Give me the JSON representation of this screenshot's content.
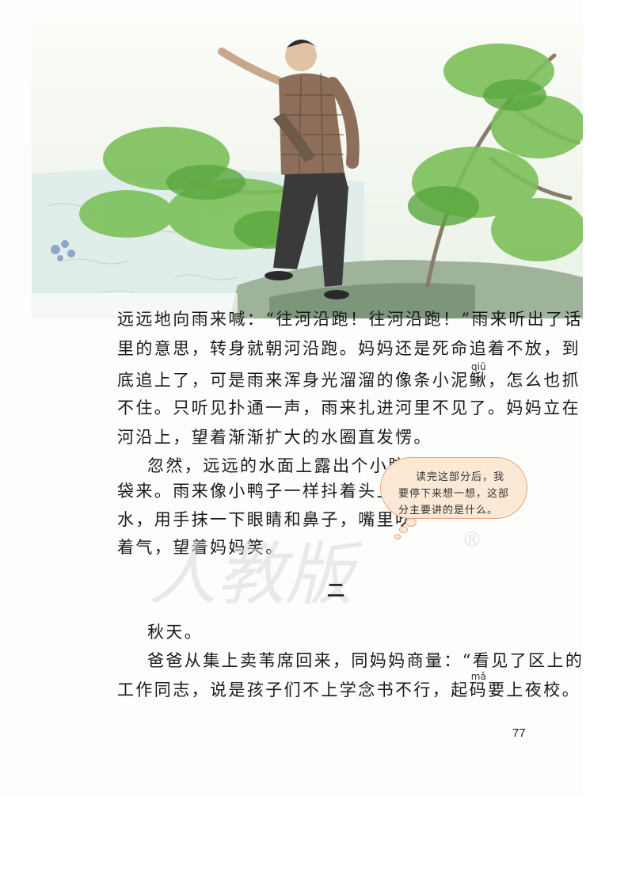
{
  "body_lines": [
    "远远地向雨来喊：“往河沿跑！往河沿跑！”雨来听出了话",
    "里的意思，转身就朝河沿跑。妈妈还是死命追着不放，到",
    "不住。只听见扑通一声，雨来扎进河里不见了。妈妈立在",
    "河沿上，望着渐渐扩大的水圈直发愣。"
  ],
  "line3": {
    "before": "底追上了，可是雨来浑身光溜溜的像条小泥",
    "ruby_char": "鳅",
    "pinyin": "qiū",
    "after": "，怎么也抓"
  },
  "para2_lines": [
    "忽然，远远的水面上露出个小脑",
    "袋来。雨来像小鸭子一样抖着头上的",
    "水，用手抹一下眼睛和鼻子，嘴里吹",
    "着气，望着妈妈笑。"
  ],
  "bubble_lines": [
    "读完这部分后，我",
    "要停下来想一想，这部",
    "分主要讲的是什么。"
  ],
  "watermark": "人教版",
  "registered_mark": "®",
  "section_number": "二",
  "para3": "秋天。",
  "para4_line1": {
    "before": "爸爸从集上卖苇席回来，同妈妈商量：“看见了区上的"
  },
  "para4_line2": {
    "before": "工作同志，说是孩子们不上学念书不行，起",
    "ruby_char": "码",
    "pinyin": "mǎ",
    "after": "要上夜校。"
  },
  "page_number": "77"
}
